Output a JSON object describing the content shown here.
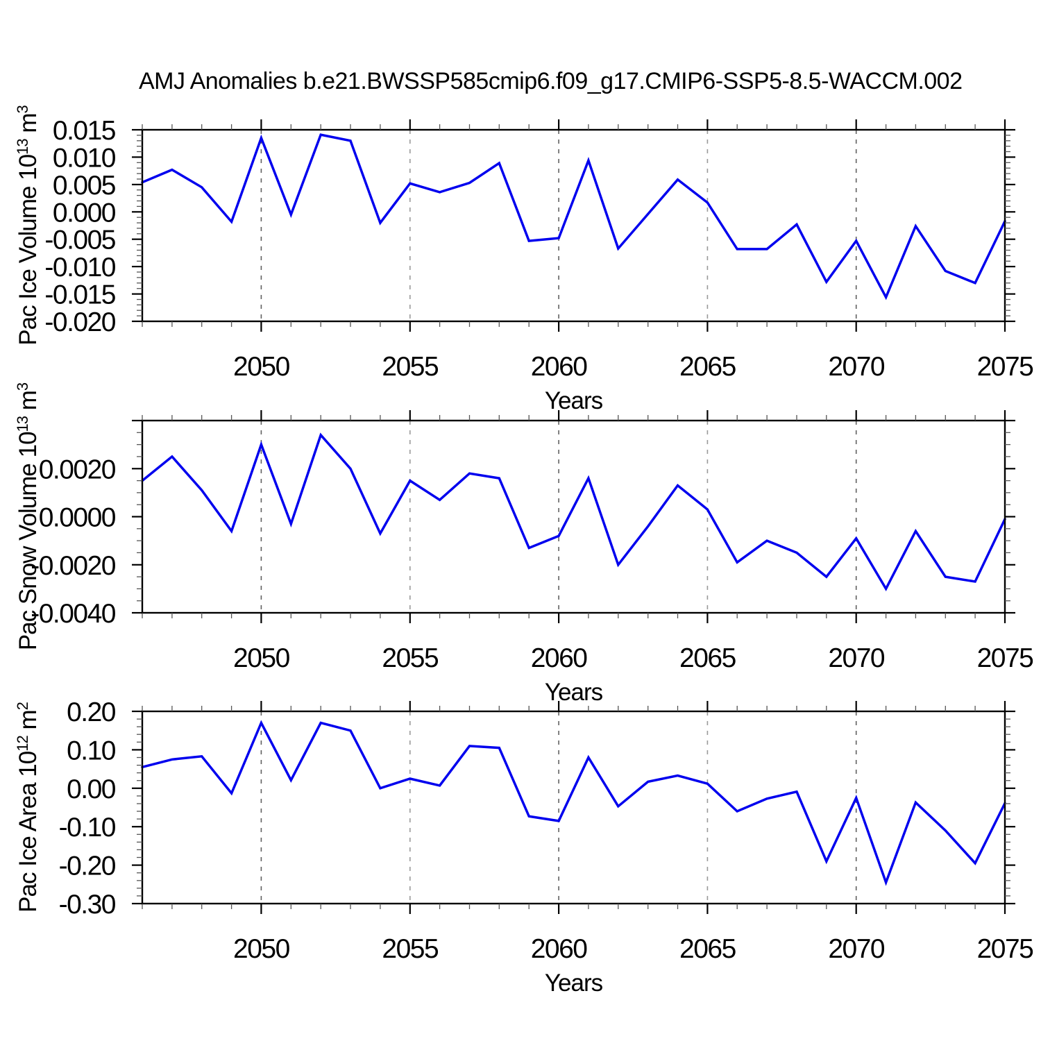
{
  "title": "AMJ Anomalies b.e21.BWSSP585cmip6.f09_g17.CMIP6-SSP5-8.5-WACCM.002",
  "colors": {
    "line": "#0000EE",
    "axis": "#000000",
    "minor_tick": "#555555",
    "background": "#FFFFFF"
  },
  "chart_data": [
    {
      "type": "line",
      "name": "pac-ice-volume",
      "ylabel_text": "Pac Ice Volume 10^13 m^3",
      "ylabel_parts": [
        {
          "t": "Pac Ice Volume 10"
        },
        {
          "t": "13",
          "sup": true
        },
        {
          "t": " m"
        },
        {
          "t": "3",
          "sup": true
        }
      ],
      "xlabel": "Years",
      "x": [
        2046,
        2047,
        2048,
        2049,
        2050,
        2051,
        2052,
        2053,
        2054,
        2055,
        2056,
        2057,
        2058,
        2059,
        2060,
        2061,
        2062,
        2063,
        2064,
        2065,
        2066,
        2067,
        2068,
        2069,
        2070,
        2071,
        2072,
        2073,
        2074,
        2075
      ],
      "values": [
        0.0054,
        0.0077,
        0.0045,
        -0.0018,
        0.0135,
        -0.0005,
        0.0141,
        0.013,
        -0.002,
        0.0052,
        0.0036,
        0.0053,
        0.0089,
        -0.0053,
        -0.0048,
        0.0094,
        -0.0067,
        -0.0004,
        0.0059,
        0.0017,
        -0.0068,
        -0.0068,
        -0.0023,
        -0.0128,
        -0.0053,
        -0.0156,
        -0.0026,
        -0.0108,
        -0.013,
        -0.0017
      ],
      "xlim": [
        2046,
        2075
      ],
      "ylim": [
        -0.02,
        0.015
      ],
      "yticks_major": [
        0.015,
        0.01,
        0.005,
        0.0,
        -0.005,
        -0.01,
        -0.015,
        -0.02
      ],
      "ytick_labels": [
        "0.015",
        "0.010",
        "0.005",
        "0.000",
        "-0.005",
        "-0.010",
        "-0.015",
        "-0.020"
      ],
      "y_minor_step": 0.001,
      "xticks_major": [
        2050,
        2055,
        2060,
        2065,
        2070,
        2075
      ],
      "xtick_labels": [
        "2050",
        "2055",
        "2060",
        "2065",
        "2070",
        "2075"
      ],
      "x_minor_step": 1,
      "grid_x": [
        2050,
        2055,
        2060,
        2065,
        2070
      ],
      "grid_colors": [
        "#606060",
        "#9a9a9a",
        "#606060",
        "#9a9a9a",
        "#606060"
      ],
      "legend": "none"
    },
    {
      "type": "line",
      "name": "pac-snow-volume",
      "ylabel_text": "Pac Snow Volume 10^13 m^3",
      "ylabel_parts": [
        {
          "t": "Pac Snow Volume 10"
        },
        {
          "t": "13",
          "sup": true
        },
        {
          "t": " m"
        },
        {
          "t": "3",
          "sup": true
        }
      ],
      "xlabel": "Years",
      "x": [
        2046,
        2047,
        2048,
        2049,
        2050,
        2051,
        2052,
        2053,
        2054,
        2055,
        2056,
        2057,
        2058,
        2059,
        2060,
        2061,
        2062,
        2063,
        2064,
        2065,
        2066,
        2067,
        2068,
        2069,
        2070,
        2071,
        2072,
        2073,
        2074,
        2075
      ],
      "values": [
        0.0015,
        0.0025,
        0.0011,
        -0.0006,
        0.003,
        -0.0003,
        0.0034,
        0.002,
        -0.0007,
        0.0015,
        0.0007,
        0.0018,
        0.0016,
        -0.0013,
        -0.0008,
        0.0016,
        -0.002,
        -0.0004,
        0.0013,
        0.0003,
        -0.0019,
        -0.001,
        -0.0015,
        -0.0025,
        -0.0009,
        -0.003,
        -0.0006,
        -0.0025,
        -0.0027,
        -0.0001
      ],
      "xlim": [
        2046,
        2075
      ],
      "ylim": [
        -0.004,
        0.004
      ],
      "yticks_major": [
        0.004,
        0.002,
        0.0,
        -0.002,
        -0.004
      ],
      "ytick_labels": [
        "",
        "0.0020",
        "0.0000",
        "-0.0020",
        "-0.0040"
      ],
      "y_minor_step": 0.0005,
      "xticks_major": [
        2050,
        2055,
        2060,
        2065,
        2070,
        2075
      ],
      "xtick_labels": [
        "2050",
        "2055",
        "2060",
        "2065",
        "2070",
        "2075"
      ],
      "x_minor_step": 1,
      "grid_x": [
        2050,
        2055,
        2060,
        2065,
        2070
      ],
      "grid_colors": [
        "#606060",
        "#9a9a9a",
        "#606060",
        "#9a9a9a",
        "#606060"
      ],
      "legend": "none"
    },
    {
      "type": "line",
      "name": "pac-ice-area",
      "ylabel_text": "Pac Ice Area 10^12 m^2",
      "ylabel_parts": [
        {
          "t": "Pac Ice Area 10"
        },
        {
          "t": "12",
          "sup": true
        },
        {
          "t": " m"
        },
        {
          "t": "2",
          "sup": true
        }
      ],
      "xlabel": "Years",
      "x": [
        2046,
        2047,
        2048,
        2049,
        2050,
        2051,
        2052,
        2053,
        2054,
        2055,
        2056,
        2057,
        2058,
        2059,
        2060,
        2061,
        2062,
        2063,
        2064,
        2065,
        2066,
        2067,
        2068,
        2069,
        2070,
        2071,
        2072,
        2073,
        2074,
        2075
      ],
      "values": [
        0.055,
        0.075,
        0.083,
        -0.013,
        0.17,
        0.021,
        0.17,
        0.15,
        0.0,
        0.025,
        0.007,
        0.11,
        0.105,
        -0.073,
        -0.085,
        0.08,
        -0.047,
        0.017,
        0.033,
        0.012,
        -0.06,
        -0.027,
        -0.009,
        -0.19,
        -0.025,
        -0.245,
        -0.037,
        -0.11,
        -0.195,
        -0.039
      ],
      "xlim": [
        2046,
        2075
      ],
      "ylim": [
        -0.3,
        0.2
      ],
      "yticks_major": [
        0.2,
        0.1,
        0.0,
        -0.1,
        -0.2,
        -0.3
      ],
      "ytick_labels": [
        "0.20",
        "0.10",
        "0.00",
        "-0.10",
        "-0.20",
        "-0.30"
      ],
      "y_minor_step": 0.02,
      "xticks_major": [
        2050,
        2055,
        2060,
        2065,
        2070,
        2075
      ],
      "xtick_labels": [
        "2050",
        "2055",
        "2060",
        "2065",
        "2070",
        "2075"
      ],
      "x_minor_step": 1,
      "grid_x": [
        2050,
        2055,
        2060,
        2065,
        2070
      ],
      "grid_colors": [
        "#606060",
        "#9a9a9a",
        "#606060",
        "#9a9a9a",
        "#606060"
      ],
      "legend": "none"
    }
  ]
}
